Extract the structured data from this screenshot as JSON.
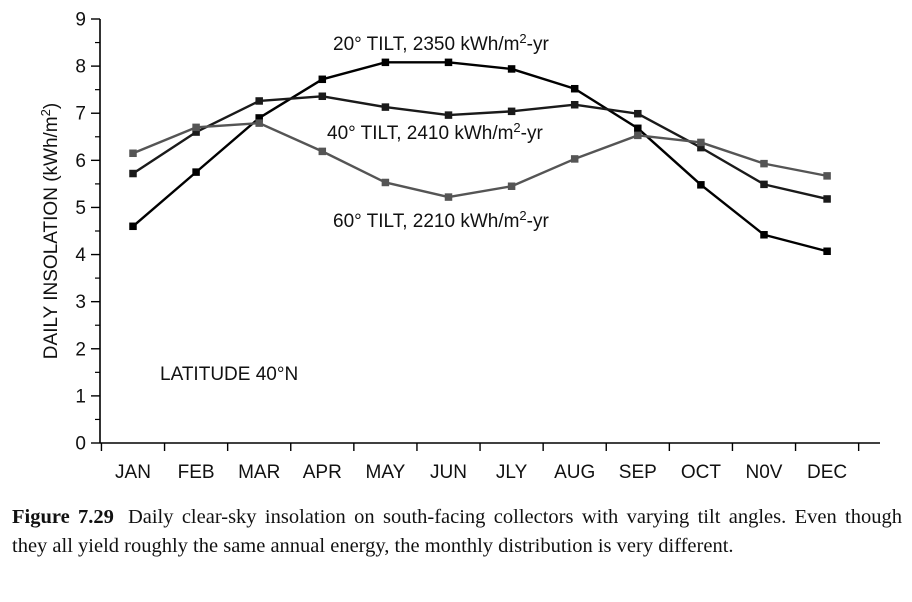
{
  "chart_data": {
    "type": "line",
    "title": "",
    "xlabel": "",
    "ylabel": "DAILY INSOLATION (kWh/m2)",
    "ylabel_parts": {
      "main": "DAILY INSOLATION (kWh/m",
      "sup": "2",
      "tail": ")"
    },
    "ylim": [
      0,
      9
    ],
    "yticks": [
      "0",
      "1",
      "2",
      "3",
      "4",
      "5",
      "6",
      "7",
      "8",
      "9"
    ],
    "categories": [
      "JAN",
      "FEB",
      "MAR",
      "APR",
      "MAY",
      "JUN",
      "JLY",
      "AUG",
      "SEP",
      "OCT",
      "N0V",
      "DEC"
    ],
    "grid": false,
    "series": [
      {
        "name": "20° TILT, 2350 kWh/m2-yr",
        "color": "#000000",
        "values": [
          4.6,
          5.75,
          6.9,
          7.72,
          8.08,
          8.08,
          7.94,
          7.52,
          6.68,
          5.48,
          4.42,
          4.07
        ]
      },
      {
        "name": "40° TILT, 2410 kWh/m2-yr",
        "color": "#1a1a1a",
        "values": [
          5.72,
          6.6,
          7.26,
          7.36,
          7.13,
          6.96,
          7.04,
          7.18,
          6.99,
          6.27,
          5.49,
          5.18
        ]
      },
      {
        "name": "60° TILT, 2210 kWh/m2-yr",
        "color": "#555555",
        "values": [
          6.15,
          6.7,
          6.79,
          6.19,
          5.53,
          5.22,
          5.45,
          6.03,
          6.53,
          6.38,
          5.93,
          5.67
        ]
      }
    ],
    "annotations": [
      {
        "main": "20° TILT, 2350 kWh/m",
        "sup": "2",
        "tail": "-yr"
      },
      {
        "main": "40° TILT, 2410 kWh/m",
        "sup": "2",
        "tail": "-yr"
      },
      {
        "main": "60° TILT, 2210 kWh/m",
        "sup": "2",
        "tail": "-yr"
      },
      {
        "main": "LATITUDE 40°N",
        "sup": "",
        "tail": ""
      }
    ]
  },
  "caption": {
    "label": "Figure 7.29",
    "text": "Daily clear-sky insolation on south-facing collectors with varying tilt angles. Even though they all yield roughly the same annual energy, the monthly distribution is very different."
  }
}
